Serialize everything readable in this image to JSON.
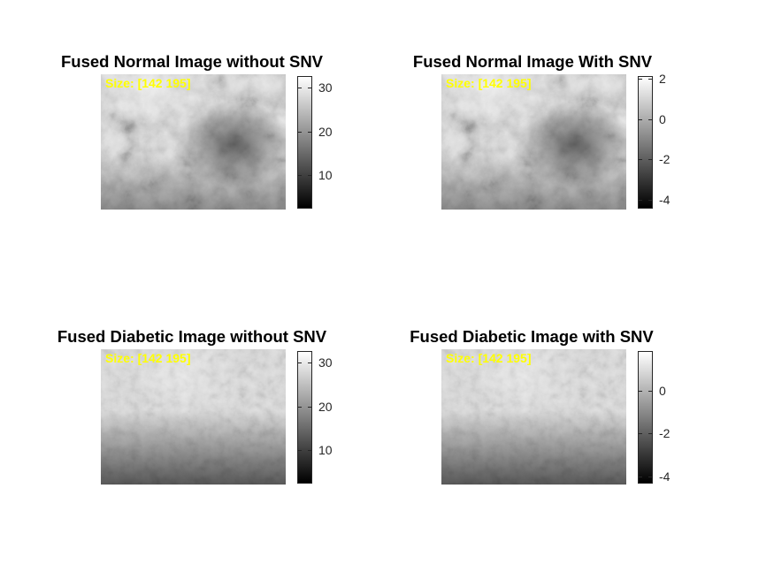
{
  "chart_data": [
    {
      "type": "heatmap",
      "title": "Fused Normal Image without SNV",
      "annotation": "Size: [142 195]",
      "image_size": [
        142,
        195
      ],
      "colormap": "gray",
      "clim": [
        2.5,
        32.5
      ],
      "colorbar_ticks": [
        10,
        20,
        30
      ],
      "colorbar_tick_labels": [
        "10",
        "20",
        "30"
      ],
      "texture": "normal"
    },
    {
      "type": "heatmap",
      "title": "Fused Normal Image With SNV",
      "annotation": "Size: [142 195]",
      "image_size": [
        142,
        195
      ],
      "colormap": "gray",
      "clim": [
        -4.4,
        2.1
      ],
      "colorbar_ticks": [
        -4,
        -2,
        0,
        2
      ],
      "colorbar_tick_labels": [
        "-4",
        "-2",
        "0",
        "2"
      ],
      "texture": "normal"
    },
    {
      "type": "heatmap",
      "title": "Fused Diabetic Image without SNV",
      "annotation": "Size: [142 195]",
      "image_size": [
        142,
        195
      ],
      "colormap": "gray",
      "clim": [
        2.5,
        32.5
      ],
      "colorbar_ticks": [
        10,
        20,
        30
      ],
      "colorbar_tick_labels": [
        "10",
        "20",
        "30"
      ],
      "texture": "diabetic"
    },
    {
      "type": "heatmap",
      "title": "Fused Diabetic Image with SNV",
      "annotation": "Size: [142 195]",
      "image_size": [
        142,
        195
      ],
      "colormap": "gray",
      "clim": [
        -4.3,
        1.8
      ],
      "colorbar_ticks": [
        -4,
        -2,
        0
      ],
      "colorbar_tick_labels": [
        "-4",
        "-2",
        "0"
      ],
      "texture": "diabetic"
    }
  ]
}
